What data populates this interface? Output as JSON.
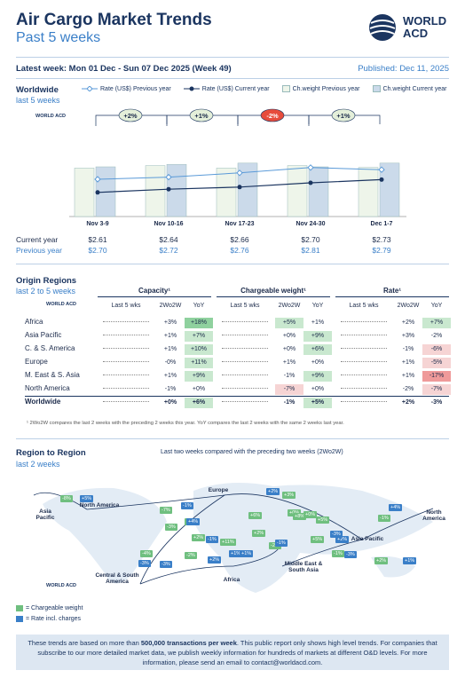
{
  "header": {
    "title": "Air Cargo Market Trends",
    "subtitle": "Past 5 weeks",
    "logo_text_1": "WORLD",
    "logo_text_2": "ACD",
    "latest_week": "Latest week:  Mon 01 Dec - Sun 07 Dec 2025 (Week 49)",
    "published": "Published: Dec 11, 2025"
  },
  "worldwide": {
    "title": "Worldwide",
    "subtitle": "last 5 weeks",
    "mini_logo": "WORLD ACD",
    "legend": [
      "Rate (US$) Previous year",
      "Rate (US$) Current year",
      "Ch.weight Previous year",
      "Ch.weight Current year"
    ],
    "changes": [
      "+2%",
      "+1%",
      "-2%",
      "+1%"
    ],
    "row_labels": [
      "Current year",
      "Previous year"
    ],
    "colors": {
      "current": "#1b3560",
      "previous": "#5a9ad8",
      "bar_prev": "#eef5ea",
      "bar_curr": "#cbdaea",
      "neg": "#e74c3c"
    }
  },
  "chart_data": {
    "type": "bar",
    "categories": [
      "Nov 3-9",
      "Nov 10-16",
      "Nov 17-23",
      "Nov 24-30",
      "Dec 1-7"
    ],
    "series": [
      {
        "name": "Rate (US$) Current year",
        "values": [
          "$2.61",
          "$2.64",
          "$2.66",
          "$2.70",
          "$2.73"
        ]
      },
      {
        "name": "Rate (US$) Previous year",
        "values": [
          "$2.70",
          "$2.72",
          "$2.76",
          "$2.81",
          "$2.79"
        ]
      },
      {
        "name": "Ch.weight Previous year",
        "values": [
          0.78,
          0.82,
          0.78,
          0.82,
          0.79
        ]
      },
      {
        "name": "Ch.weight Current year",
        "values": [
          0.8,
          0.84,
          0.86,
          0.8,
          0.86
        ]
      }
    ]
  },
  "origin": {
    "title": "Origin Regions",
    "subtitle": "last 2 to 5 weeks",
    "groups": [
      "Capacity¹",
      "Chargeable weight¹",
      "Rate¹"
    ],
    "subheads": [
      "Last 5 wks",
      "2Wo2W",
      "YoY"
    ],
    "rows": [
      {
        "name": "Africa",
        "cap": [
          "+3%",
          "+18%"
        ],
        "cw": [
          "+5%",
          "+1%"
        ],
        "rate": [
          "+2%",
          "+7%"
        ]
      },
      {
        "name": "Asia Pacific",
        "cap": [
          "+1%",
          "+7%"
        ],
        "cw": [
          "+0%",
          "+9%"
        ],
        "rate": [
          "+3%",
          "-2%"
        ]
      },
      {
        "name": "C. & S. America",
        "cap": [
          "+1%",
          "+10%"
        ],
        "cw": [
          "+0%",
          "+6%"
        ],
        "rate": [
          "-1%",
          "-6%"
        ]
      },
      {
        "name": "Europe",
        "cap": [
          "-0%",
          "+11%"
        ],
        "cw": [
          "+1%",
          "+0%"
        ],
        "rate": [
          "+1%",
          "-5%"
        ]
      },
      {
        "name": "M. East & S. Asia",
        "cap": [
          "+1%",
          "+9%"
        ],
        "cw": [
          "-1%",
          "+9%"
        ],
        "rate": [
          "+1%",
          "-17%"
        ]
      },
      {
        "name": "North America",
        "cap": [
          "-1%",
          "+0%"
        ],
        "cw": [
          "-7%",
          "+0%"
        ],
        "rate": [
          "-2%",
          "-7%"
        ]
      },
      {
        "name": "Worldwide",
        "cap": [
          "+0%",
          "+6%"
        ],
        "cw": [
          "-1%",
          "+5%"
        ],
        "rate": [
          "+2%",
          "-3%"
        ]
      }
    ],
    "footnote": "¹ 2Wo2W compares the last 2 weeks with the preceding 2 weeks this year. YoY compares the last 2 weeks with the same 2 weeks last year."
  },
  "region": {
    "title": "Region to Region",
    "subtitle": "last 2 weeks",
    "caption": "Last two weeks compared with the preceding two weeks (2Wo2W)",
    "labels": [
      "Asia Pacific",
      "North America",
      "Europe",
      "Central & South America",
      "Africa",
      "Middle East & South Asia",
      "Asia Pacific",
      "North America"
    ],
    "legend": [
      "= Chargeable weight",
      "= Rate incl. charges"
    ],
    "badges": {
      "green": [
        "-8%",
        "-7%",
        "-3%",
        "+4%",
        "+2%",
        "-4%",
        "-2%",
        "+11%",
        "+6%",
        "+2%",
        "-2%",
        "+3%",
        "+0%",
        "+8%",
        "+0%",
        "+5%",
        "+5%",
        "-1%",
        "+2%",
        "-1%"
      ],
      "blue": [
        "+5%",
        "-1%",
        "+4%",
        "-1%",
        "-3%",
        "-3%",
        "+2%",
        "+1%",
        "+2%",
        "+1%",
        "-1%",
        "+2%",
        "-3%",
        "-3%",
        "+1%",
        "+4%"
      ]
    }
  },
  "footer": {
    "text_1": "These trends are based on more than ",
    "bold": "500,000 transactions per week",
    "text_2": ". This public report only shows high level trends. For companies that subscribe to our more detailed market data, we publish weekly information for hundreds of markets at different O&D levels. For more information, please send an email to ",
    "email": "contact@worldacd.com",
    "end": "."
  }
}
